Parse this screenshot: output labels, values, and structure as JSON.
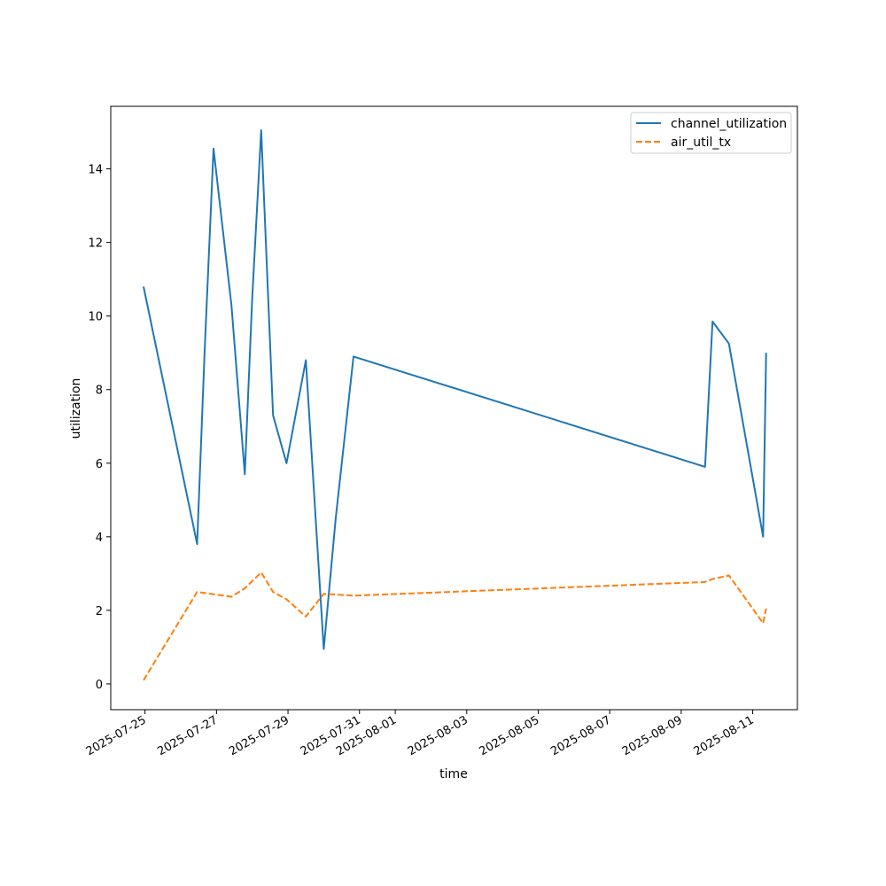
{
  "chart_data": {
    "type": "line",
    "xlabel": "time",
    "ylabel": "utilization",
    "ylim": [
      -0.7,
      15.7
    ],
    "xlim": [
      "2025-07-24T01:00",
      "2025-08-12T06:00"
    ],
    "grid": false,
    "legend_position": "top-right",
    "x_ticks": [
      "2025-07-25",
      "2025-07-27",
      "2025-07-29",
      "2025-07-31",
      "2025-08-01",
      "2025-08-03",
      "2025-08-05",
      "2025-08-07",
      "2025-08-09",
      "2025-08-11"
    ],
    "y_ticks": [
      0,
      2,
      4,
      6,
      8,
      10,
      12,
      14
    ],
    "series": [
      {
        "name": "channel_utilization",
        "color": "#1f77b4",
        "dash": "solid",
        "points": [
          {
            "x": "2025-07-24T23:00",
            "y": 10.8
          },
          {
            "x": "2025-07-26T11:00",
            "y": 3.8
          },
          {
            "x": "2025-07-26T16:00",
            "y": 9.0
          },
          {
            "x": "2025-07-26T22:00",
            "y": 14.55
          },
          {
            "x": "2025-07-27T10:00",
            "y": 10.3
          },
          {
            "x": "2025-07-27T19:00",
            "y": 5.7
          },
          {
            "x": "2025-07-28T00:00",
            "y": 10.5
          },
          {
            "x": "2025-07-28T06:00",
            "y": 15.05
          },
          {
            "x": "2025-07-28T14:00",
            "y": 7.3
          },
          {
            "x": "2025-07-28T23:00",
            "y": 6.0
          },
          {
            "x": "2025-07-29T12:00",
            "y": 8.8
          },
          {
            "x": "2025-07-30T00:00",
            "y": 0.95
          },
          {
            "x": "2025-07-30T08:00",
            "y": 4.5
          },
          {
            "x": "2025-07-30T20:00",
            "y": 8.9
          },
          {
            "x": "2025-08-09T16:00",
            "y": 5.9
          },
          {
            "x": "2025-08-09T21:00",
            "y": 9.85
          },
          {
            "x": "2025-08-10T08:00",
            "y": 9.25
          },
          {
            "x": "2025-08-11T07:00",
            "y": 4.0
          },
          {
            "x": "2025-08-11T09:00",
            "y": 9.0
          }
        ]
      },
      {
        "name": "air_util_tx",
        "color": "#ff7f0e",
        "dash": "dashed",
        "points": [
          {
            "x": "2025-07-24T23:00",
            "y": 0.1
          },
          {
            "x": "2025-07-26T11:00",
            "y": 2.5
          },
          {
            "x": "2025-07-27T10:00",
            "y": 2.37
          },
          {
            "x": "2025-07-27T19:00",
            "y": 2.6
          },
          {
            "x": "2025-07-28T06:00",
            "y": 3.03
          },
          {
            "x": "2025-07-28T14:00",
            "y": 2.5
          },
          {
            "x": "2025-07-28T23:00",
            "y": 2.3
          },
          {
            "x": "2025-07-29T12:00",
            "y": 1.83
          },
          {
            "x": "2025-07-30T00:00",
            "y": 2.45
          },
          {
            "x": "2025-07-30T20:00",
            "y": 2.4
          },
          {
            "x": "2025-08-09T16:00",
            "y": 2.77
          },
          {
            "x": "2025-08-09T21:00",
            "y": 2.85
          },
          {
            "x": "2025-08-10T08:00",
            "y": 2.95
          },
          {
            "x": "2025-08-11T07:00",
            "y": 1.65
          },
          {
            "x": "2025-08-11T09:00",
            "y": 2.05
          }
        ]
      }
    ]
  }
}
